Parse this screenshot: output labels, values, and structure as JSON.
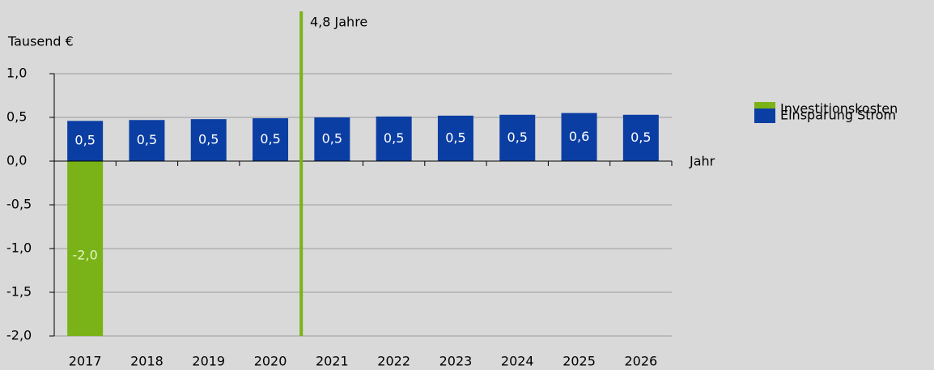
{
  "chart_data": {
    "type": "bar",
    "y_axis_label": "Tausend €",
    "x_axis_label": "Jahr",
    "annotation": "4,8 Jahre",
    "categories": [
      "2017",
      "2018",
      "2019",
      "2020",
      "2021",
      "2022",
      "2023",
      "2024",
      "2025",
      "2026"
    ],
    "series": [
      {
        "name": "Investitionskosten",
        "color": "#7ab317",
        "label_color": "#e4f3c4",
        "values": [
          -2.0,
          null,
          null,
          null,
          null,
          null,
          null,
          null,
          null,
          null
        ],
        "value_labels": [
          "-2,0",
          null,
          null,
          null,
          null,
          null,
          null,
          null,
          null,
          null
        ]
      },
      {
        "name": "Einsparung Strom",
        "color": "#0b3ea3",
        "label_color": "#ffffff",
        "values": [
          0.46,
          0.47,
          0.48,
          0.49,
          0.5,
          0.51,
          0.52,
          0.53,
          0.55,
          0.53
        ],
        "value_labels": [
          "0,5",
          "0,5",
          "0,5",
          "0,5",
          "0,5",
          "0,5",
          "0,5",
          "0,5",
          "0,6",
          "0,5"
        ]
      }
    ],
    "ylim": [
      -2.0,
      1.0
    ],
    "yticks": [
      {
        "value": -2.0,
        "label": "-2,0"
      },
      {
        "value": -1.5,
        "label": "-1,5"
      },
      {
        "value": -1.0,
        "label": "-1,0"
      },
      {
        "value": -0.5,
        "label": "-0,5"
      },
      {
        "value": 0.0,
        "label": "0,0"
      },
      {
        "value": 0.5,
        "label": "0,5"
      },
      {
        "value": 1.0,
        "label": "1,0"
      }
    ],
    "grid": true,
    "legend": "right"
  }
}
